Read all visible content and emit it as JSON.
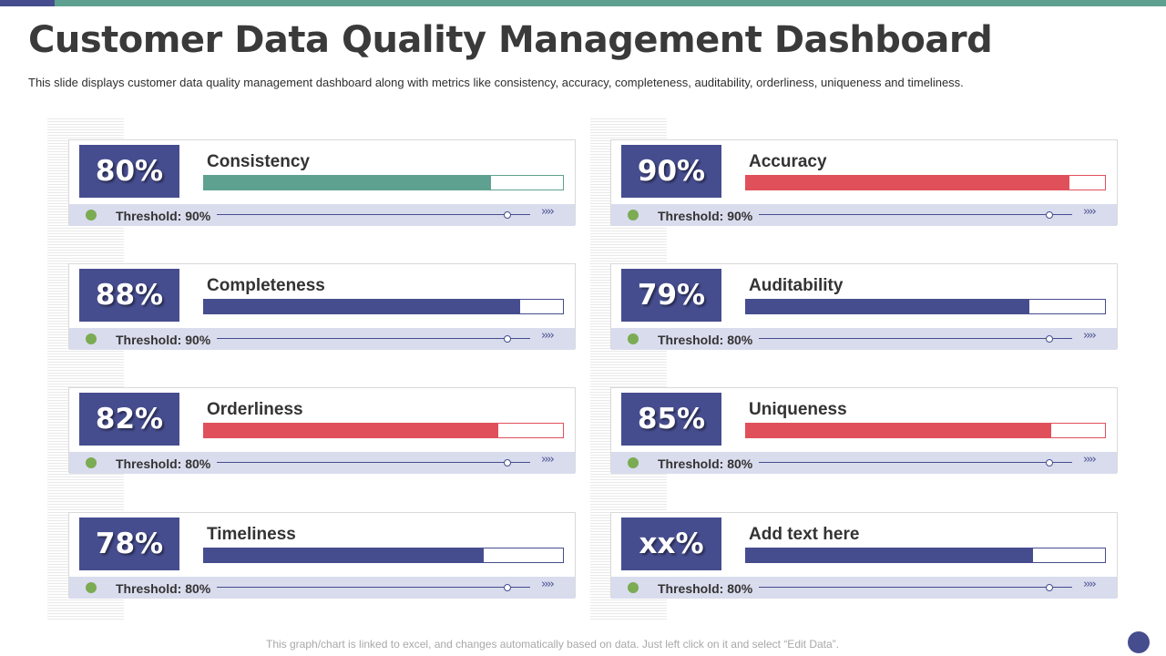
{
  "slide": {
    "title": "Customer Data Quality Management Dashboard",
    "subtitle": "This slide displays customer data quality management dashboard along with metrics like consistency, accuracy, completeness, auditability, orderliness, uniqueness and timeliness.",
    "footer_note": "This graph/chart is linked to excel, and changes automatically based on data. Just left click on it and select “Edit Data”."
  },
  "colors": {
    "navy": "#464d8e",
    "teal": "#5fa190",
    "red": "#e0505a",
    "green_dot": "#7bab53",
    "footer_band": "#d9dced"
  },
  "metrics": [
    {
      "percent_label": "80%",
      "name": "Consistency",
      "fill_percent": 80,
      "bar_color": "#5fa190",
      "threshold_label": "Threshold: 90%",
      "arrows": "››››"
    },
    {
      "percent_label": "90%",
      "name": "Accuracy",
      "fill_percent": 90,
      "bar_color": "#e0505a",
      "threshold_label": "Threshold: 90%",
      "arrows": "››››"
    },
    {
      "percent_label": "88%",
      "name": "Completeness",
      "fill_percent": 88,
      "bar_color": "#464d8e",
      "threshold_label": "Threshold: 90%",
      "arrows": "››››"
    },
    {
      "percent_label": "79%",
      "name": "Auditability",
      "fill_percent": 79,
      "bar_color": "#464d8e",
      "threshold_label": "Threshold: 80%",
      "arrows": "››››"
    },
    {
      "percent_label": "82%",
      "name": "Orderliness",
      "fill_percent": 82,
      "bar_color": "#e0505a",
      "threshold_label": "Threshold: 80%",
      "arrows": "››››"
    },
    {
      "percent_label": "85%",
      "name": "Uniqueness",
      "fill_percent": 85,
      "bar_color": "#e0505a",
      "threshold_label": "Threshold: 80%",
      "arrows": "››››"
    },
    {
      "percent_label": "78%",
      "name": "Timeliness",
      "fill_percent": 78,
      "bar_color": "#464d8e",
      "threshold_label": "Threshold: 80%",
      "arrows": "››››"
    },
    {
      "percent_label": "xx%",
      "name": "Add text here",
      "fill_percent": 80,
      "bar_color": "#464d8e",
      "threshold_label": "Threshold: 80%",
      "arrows": "››››"
    }
  ]
}
